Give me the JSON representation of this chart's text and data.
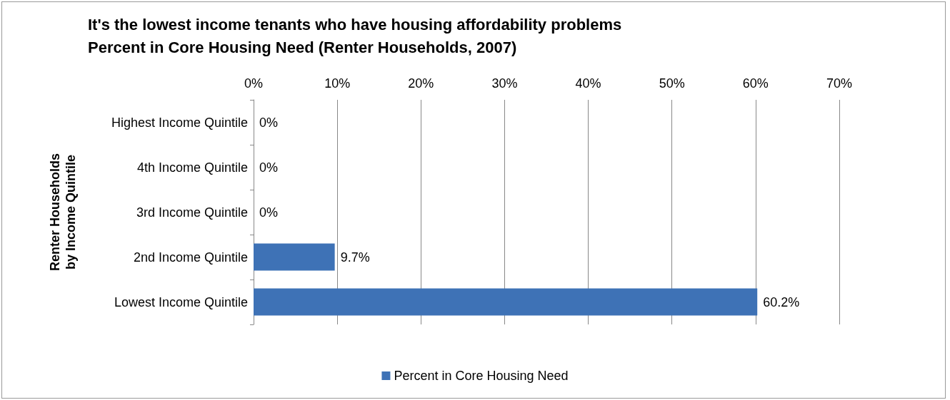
{
  "chart_data": {
    "type": "bar",
    "orientation": "horizontal",
    "title": "It's the lowest income tenants who have housing affordability problems",
    "subtitle": "Percent in Core Housing Need (Renter Households, 2007)",
    "ylabel": "Renter Households\nby Income Quintile",
    "categories": [
      "Highest Income Quintile",
      "4th Income Quintile",
      "3rd Income Quintile",
      "2nd Income Quintile",
      "Lowest Income Quintile"
    ],
    "series": [
      {
        "name": "Percent in Core Housing Need",
        "color": "#3e72b6",
        "values": [
          0,
          0,
          0,
          9.7,
          60.2
        ],
        "value_labels": [
          "0%",
          "0%",
          "0%",
          "9.7%",
          "60.2%"
        ]
      }
    ],
    "xlim": [
      0,
      70
    ],
    "xticks": [
      {
        "value": 0,
        "label": "0%"
      },
      {
        "value": 10,
        "label": "10%"
      },
      {
        "value": 20,
        "label": "20%"
      },
      {
        "value": 30,
        "label": "30%"
      },
      {
        "value": 40,
        "label": "40%"
      },
      {
        "value": 50,
        "label": "50%"
      },
      {
        "value": 60,
        "label": "60%"
      },
      {
        "value": 70,
        "label": "70%"
      }
    ],
    "grid": "x",
    "legend": "bottom"
  }
}
